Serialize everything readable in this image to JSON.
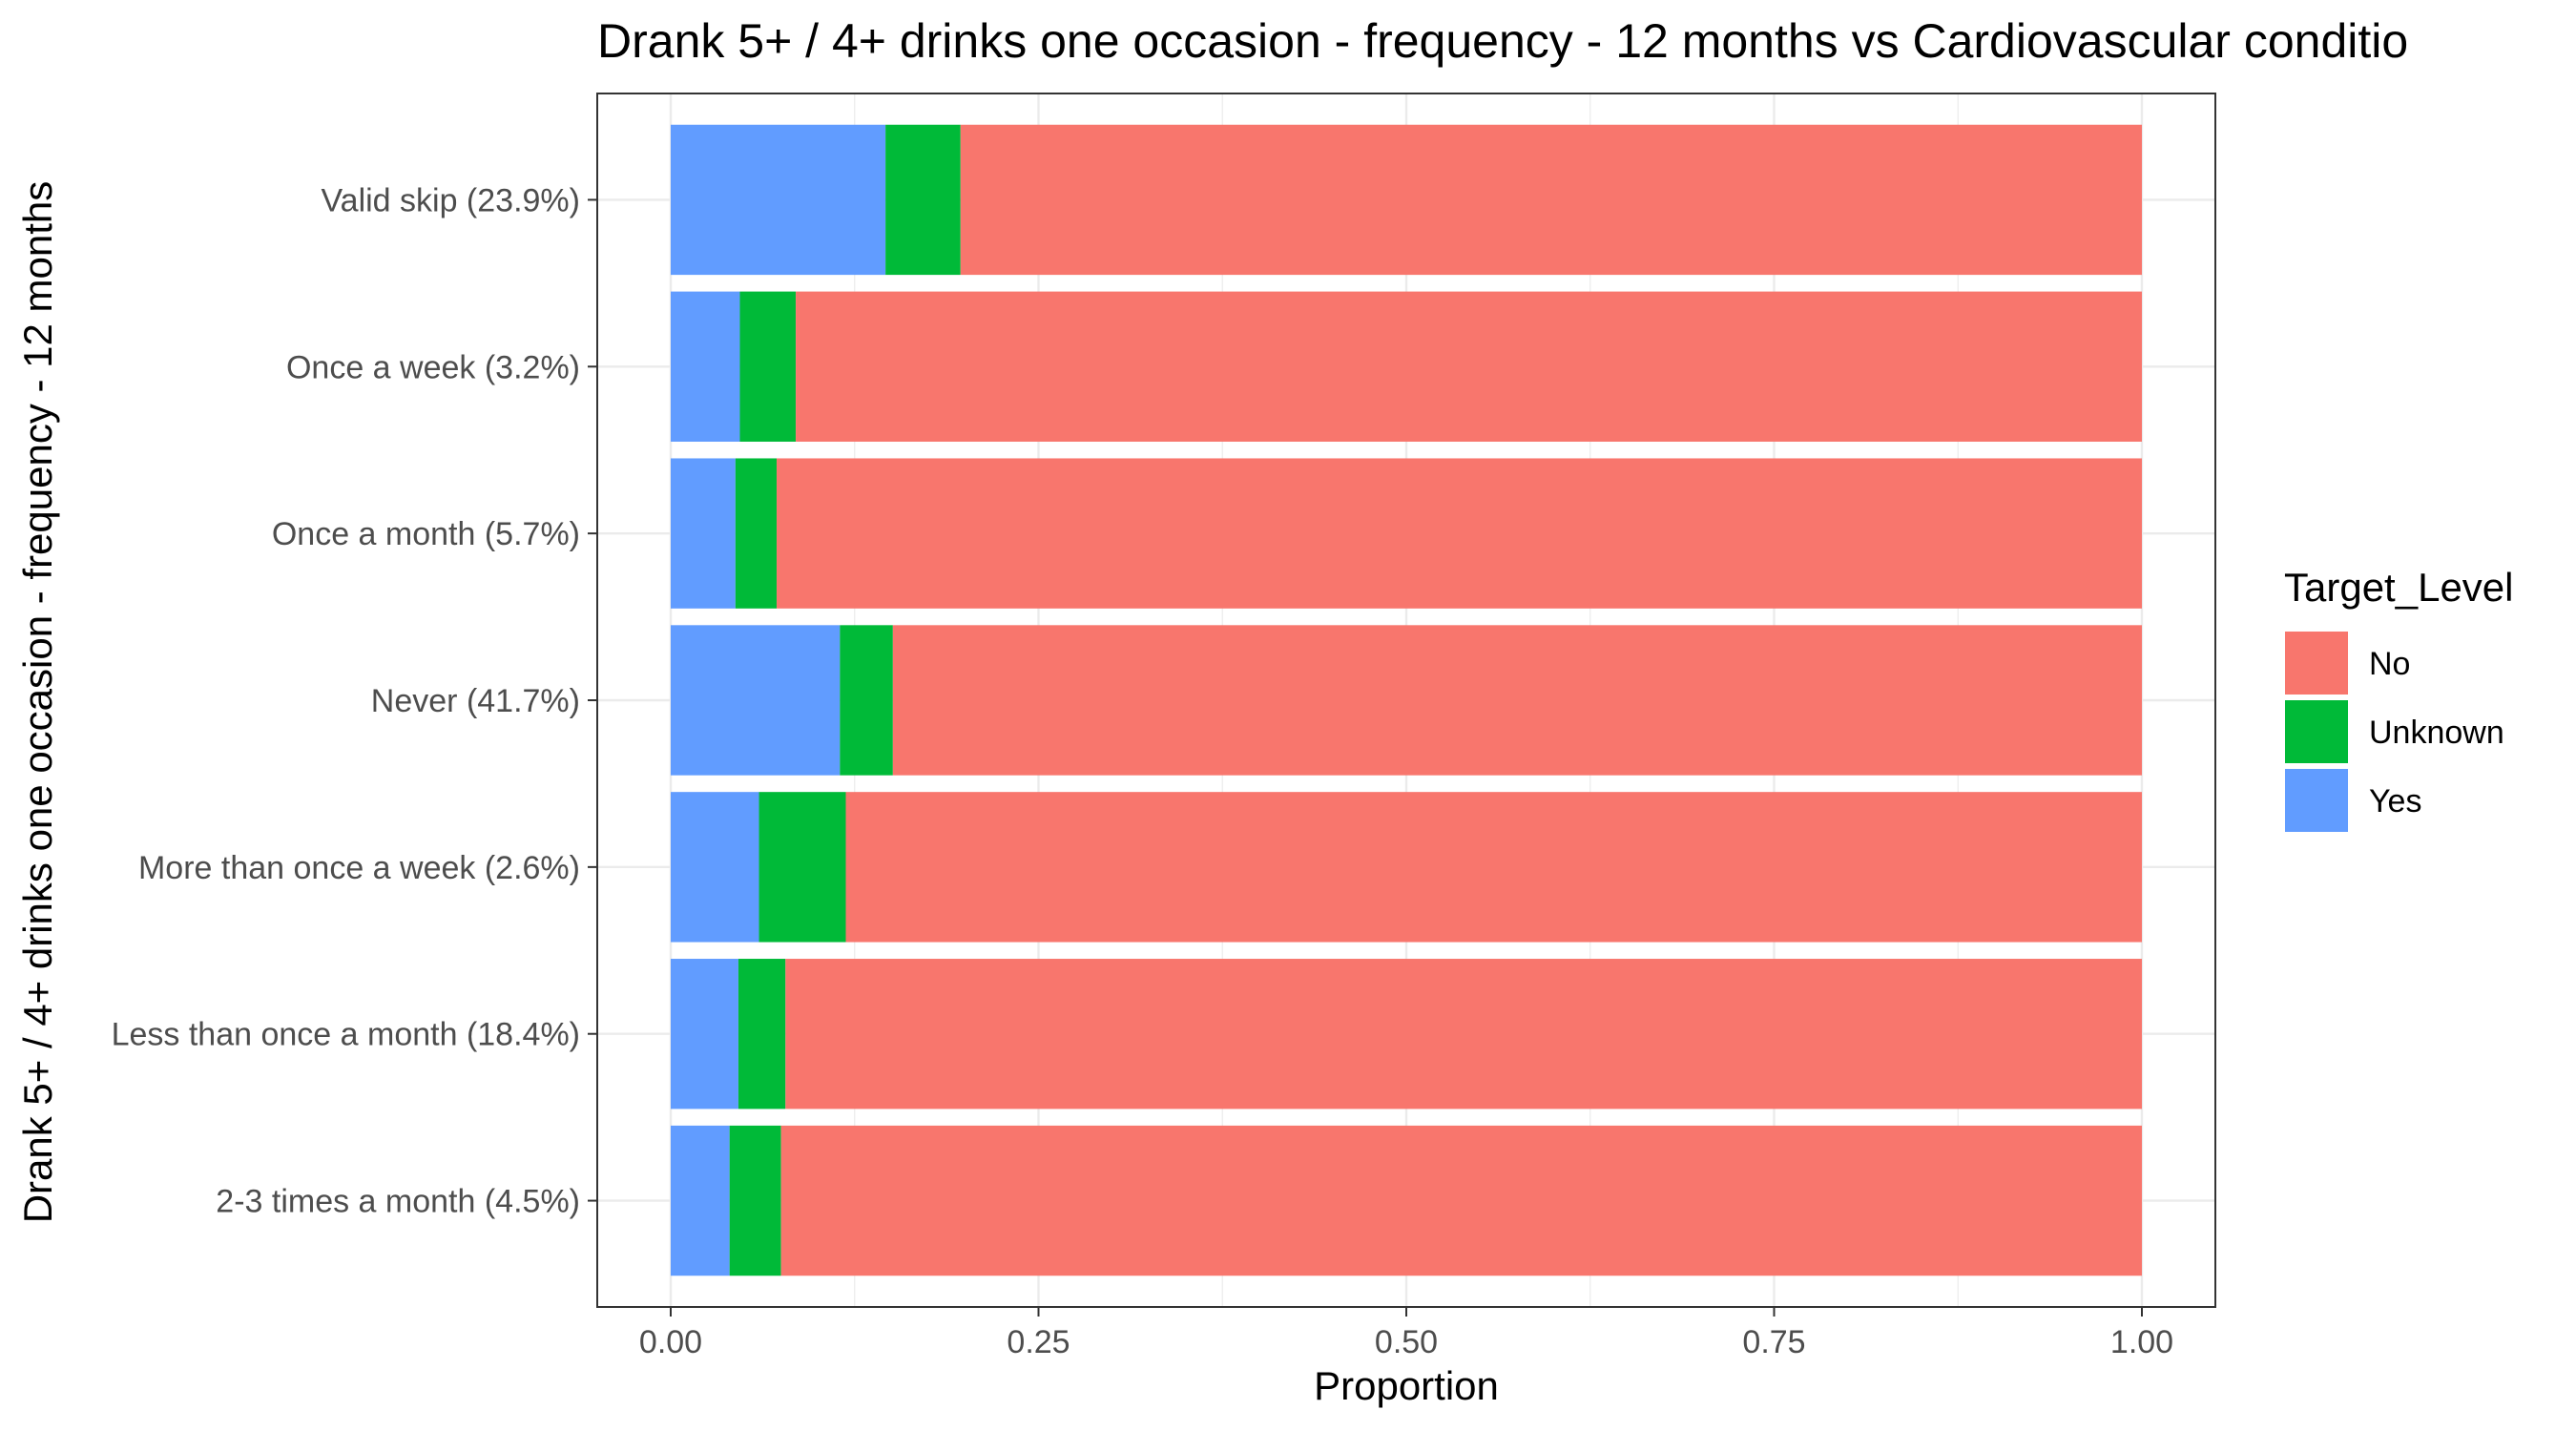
{
  "chart_data": {
    "type": "bar",
    "orientation": "horizontal",
    "stacked": true,
    "title": "Drank 5+ / 4+ drinks one occasion - frequency - 12 months vs Cardiovascular conditio",
    "xlabel": "Proportion",
    "ylabel": "Drank 5+ / 4+ drinks one occasion - frequency - 12 months",
    "xlim": [
      0,
      1
    ],
    "x_ticks": [
      "0.00",
      "0.25",
      "0.50",
      "0.75",
      "1.00"
    ],
    "grid": true,
    "categories": [
      "Valid skip (23.9%)",
      "Once a week (3.2%)",
      "Once a month (5.7%)",
      "Never (41.7%)",
      "More than once a week (2.6%)",
      "Less than once a month (18.4%)",
      "2-3 times a month (4.5%)"
    ],
    "series": [
      {
        "name": "Yes",
        "color": "#619CFF",
        "values": [
          0.146,
          0.047,
          0.044,
          0.115,
          0.06,
          0.046,
          0.04
        ]
      },
      {
        "name": "Unknown",
        "color": "#00BA38",
        "values": [
          0.051,
          0.038,
          0.028,
          0.036,
          0.059,
          0.032,
          0.035
        ]
      },
      {
        "name": "No",
        "color": "#F8766D",
        "values": [
          0.803,
          0.915,
          0.928,
          0.849,
          0.881,
          0.922,
          0.925
        ]
      }
    ],
    "legend": {
      "title": "Target_Level",
      "position": "right",
      "entries": [
        {
          "label": "No",
          "color": "#F8766D"
        },
        {
          "label": "Unknown",
          "color": "#00BA38"
        },
        {
          "label": "Yes",
          "color": "#619CFF"
        }
      ]
    }
  }
}
